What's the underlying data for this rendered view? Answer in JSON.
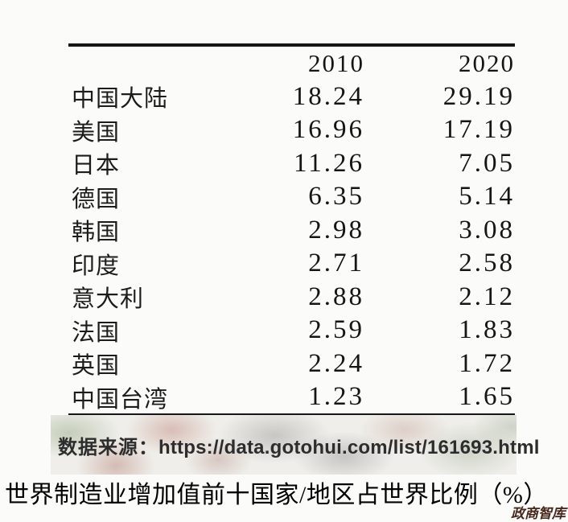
{
  "chart_data": {
    "type": "table",
    "title": "世界制造业增加值前十国家/地区占世界比例（%）",
    "columns": [
      "",
      "2010",
      "2020"
    ],
    "rows": [
      {
        "label": "中国大陆",
        "v2010": "18.24",
        "v2020": "29.19"
      },
      {
        "label": "美国",
        "v2010": "16.96",
        "v2020": "17.19"
      },
      {
        "label": "日本",
        "v2010": "11.26",
        "v2020": "7.05"
      },
      {
        "label": "德国",
        "v2010": "6.35",
        "v2020": "5.14"
      },
      {
        "label": "韩国",
        "v2010": "2.98",
        "v2020": "3.08"
      },
      {
        "label": "印度",
        "v2010": "2.71",
        "v2020": "2.58"
      },
      {
        "label": "意大利",
        "v2010": "2.88",
        "v2020": "2.12"
      },
      {
        "label": "法国",
        "v2010": "2.59",
        "v2020": "1.83"
      },
      {
        "label": "英国",
        "v2010": "2.24",
        "v2020": "1.72"
      },
      {
        "label": "中国台湾",
        "v2010": "1.23",
        "v2020": "1.65"
      }
    ],
    "unit": "%"
  },
  "source": {
    "label": "数据来源：",
    "url": "https://data.gotohui.com/list/161693.html"
  },
  "caption": "世界制造业增加值前十国家/地区占世界比例（%）",
  "watermark": "政商智库",
  "colors": {
    "rule": "#161616",
    "table_text": "#1c1c1c",
    "source_text": "#2d2d2d",
    "watermark": "#46281c"
  }
}
